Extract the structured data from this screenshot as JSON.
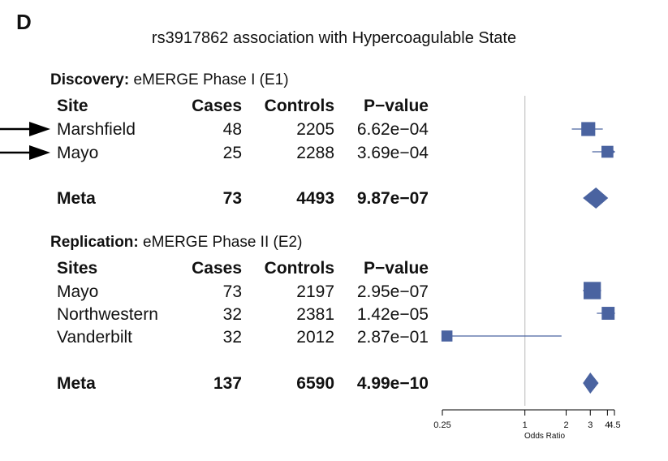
{
  "panel_letter": "D",
  "title": "rs3917862 association with Hypercoagulable State",
  "discovery": {
    "label_bold": "Discovery:",
    "label_rest": " eMERGE Phase I (E1)",
    "headers": {
      "site": "Site",
      "cases": "Cases",
      "controls": "Controls",
      "pvalue": "P−value"
    },
    "rows": [
      {
        "site": "Marshfield",
        "cases": "48",
        "controls": "2205",
        "pvalue": "6.62e−04"
      },
      {
        "site": "Mayo",
        "cases": "25",
        "controls": "2288",
        "pvalue": "3.69e−04"
      }
    ],
    "meta": {
      "site": "Meta",
      "cases": "73",
      "controls": "4493",
      "pvalue": "9.87e−07"
    }
  },
  "replication": {
    "label_bold": "Replication:",
    "label_rest": " eMERGE Phase II (E2)",
    "headers": {
      "site": "Sites",
      "cases": "Cases",
      "controls": "Controls",
      "pvalue": "P−value"
    },
    "rows": [
      {
        "site": "Mayo",
        "cases": "73",
        "controls": "2197",
        "pvalue": "2.95e−07"
      },
      {
        "site": "Northwestern",
        "cases": "32",
        "controls": "2381",
        "pvalue": "1.42e−05"
      },
      {
        "site": "Vanderbilt",
        "cases": "32",
        "controls": "2012",
        "pvalue": "2.87e−01"
      }
    ],
    "meta": {
      "site": "Meta",
      "cases": "137",
      "controls": "6590",
      "pvalue": "4.99e−10"
    }
  },
  "chart_data": {
    "type": "forest",
    "xlabel": "Odds Ratio",
    "xscale": "log",
    "xlim": [
      0.25,
      4.5
    ],
    "reference_line": 1,
    "xticks": [
      0.25,
      1,
      2,
      3,
      4,
      4.5
    ],
    "xtick_labels": [
      "0.25",
      "1",
      "2",
      "3",
      "4",
      "4.5"
    ],
    "marker_color": "#4a63a0",
    "points": [
      {
        "study": "Marshfield",
        "group": "Discovery",
        "kind": "square",
        "or": 2.9,
        "lo": 2.2,
        "hi": 3.7,
        "weight": 0.62,
        "clipped": ""
      },
      {
        "study": "Mayo",
        "group": "Discovery",
        "kind": "square",
        "or": 4.0,
        "lo": 3.1,
        "hi": 4.5,
        "weight": 0.48,
        "clipped": "right"
      },
      {
        "study": "Meta",
        "group": "Discovery",
        "kind": "diamond",
        "or": 3.3,
        "lo": 2.65,
        "hi": 4.05,
        "clipped": ""
      },
      {
        "study": "Mayo",
        "group": "Replication",
        "kind": "square",
        "or": 3.1,
        "lo": 2.65,
        "hi": 3.6,
        "weight": 0.85,
        "clipped": ""
      },
      {
        "study": "Northwestern",
        "group": "Replication",
        "kind": "square",
        "or": 4.05,
        "lo": 3.35,
        "hi": 4.5,
        "weight": 0.55,
        "clipped": "right"
      },
      {
        "study": "Vanderbilt",
        "group": "Replication",
        "kind": "square",
        "or": 0.27,
        "lo": 0.25,
        "hi": 1.85,
        "weight": 0.42,
        "clipped": "left"
      },
      {
        "study": "Meta",
        "group": "Replication",
        "kind": "diamond",
        "or": 3.0,
        "lo": 2.65,
        "hi": 3.45,
        "clipped": ""
      }
    ]
  }
}
